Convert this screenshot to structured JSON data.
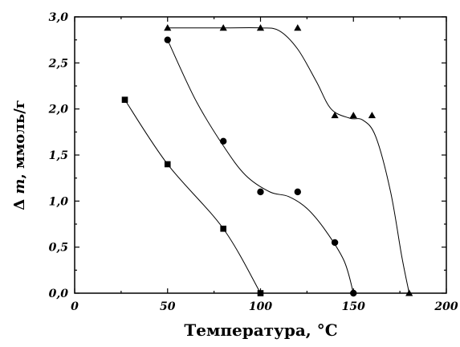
{
  "chart_data": {
    "type": "scatter",
    "xlabel": "Температура, °С",
    "ylabel_parts": [
      "Δ ",
      "m",
      ", ммоль/г"
    ],
    "xlim": [
      0,
      200
    ],
    "ylim": [
      0,
      3
    ],
    "x_ticks": [
      0,
      50,
      100,
      150,
      200
    ],
    "x_tick_labels": [
      "0",
      "50",
      "100",
      "150",
      "200"
    ],
    "y_ticks": [
      0,
      0.5,
      1,
      1.5,
      2,
      2.5,
      3
    ],
    "y_tick_labels": [
      "0,0",
      "0,5",
      "1,0",
      "1,5",
      "2,0",
      "2,5",
      "3,0"
    ],
    "grid": false,
    "series": [
      {
        "marker": "square",
        "points": [
          [
            27,
            2.1
          ],
          [
            50,
            1.4
          ],
          [
            80,
            0.7
          ],
          [
            100,
            0.0
          ]
        ],
        "curve": [
          [
            27,
            2.1
          ],
          [
            50,
            1.4
          ],
          [
            80,
            0.7
          ],
          [
            100,
            0.0
          ]
        ]
      },
      {
        "marker": "circle",
        "points": [
          [
            50,
            2.75
          ],
          [
            80,
            1.65
          ],
          [
            100,
            1.1
          ],
          [
            120,
            1.1
          ],
          [
            140,
            0.55
          ],
          [
            150,
            0.0
          ]
        ],
        "curve": [
          [
            50,
            2.75
          ],
          [
            65,
            2.1
          ],
          [
            80,
            1.6
          ],
          [
            92,
            1.28
          ],
          [
            105,
            1.1
          ],
          [
            115,
            1.05
          ],
          [
            125,
            0.92
          ],
          [
            135,
            0.68
          ],
          [
            145,
            0.35
          ],
          [
            150,
            0.0
          ]
        ]
      },
      {
        "marker": "triangle",
        "points": [
          [
            50,
            2.88
          ],
          [
            80,
            2.88
          ],
          [
            100,
            2.88
          ],
          [
            120,
            2.88
          ],
          [
            140,
            1.93
          ],
          [
            150,
            1.93
          ],
          [
            160,
            1.93
          ],
          [
            180,
            0.0
          ]
        ],
        "curve": [
          [
            50,
            2.88
          ],
          [
            80,
            2.88
          ],
          [
            100,
            2.88
          ],
          [
            110,
            2.85
          ],
          [
            120,
            2.65
          ],
          [
            130,
            2.3
          ],
          [
            138,
            2.0
          ],
          [
            148,
            1.9
          ],
          [
            155,
            1.88
          ],
          [
            162,
            1.7
          ],
          [
            170,
            1.1
          ],
          [
            176,
            0.4
          ],
          [
            180,
            0.0
          ]
        ]
      }
    ]
  }
}
